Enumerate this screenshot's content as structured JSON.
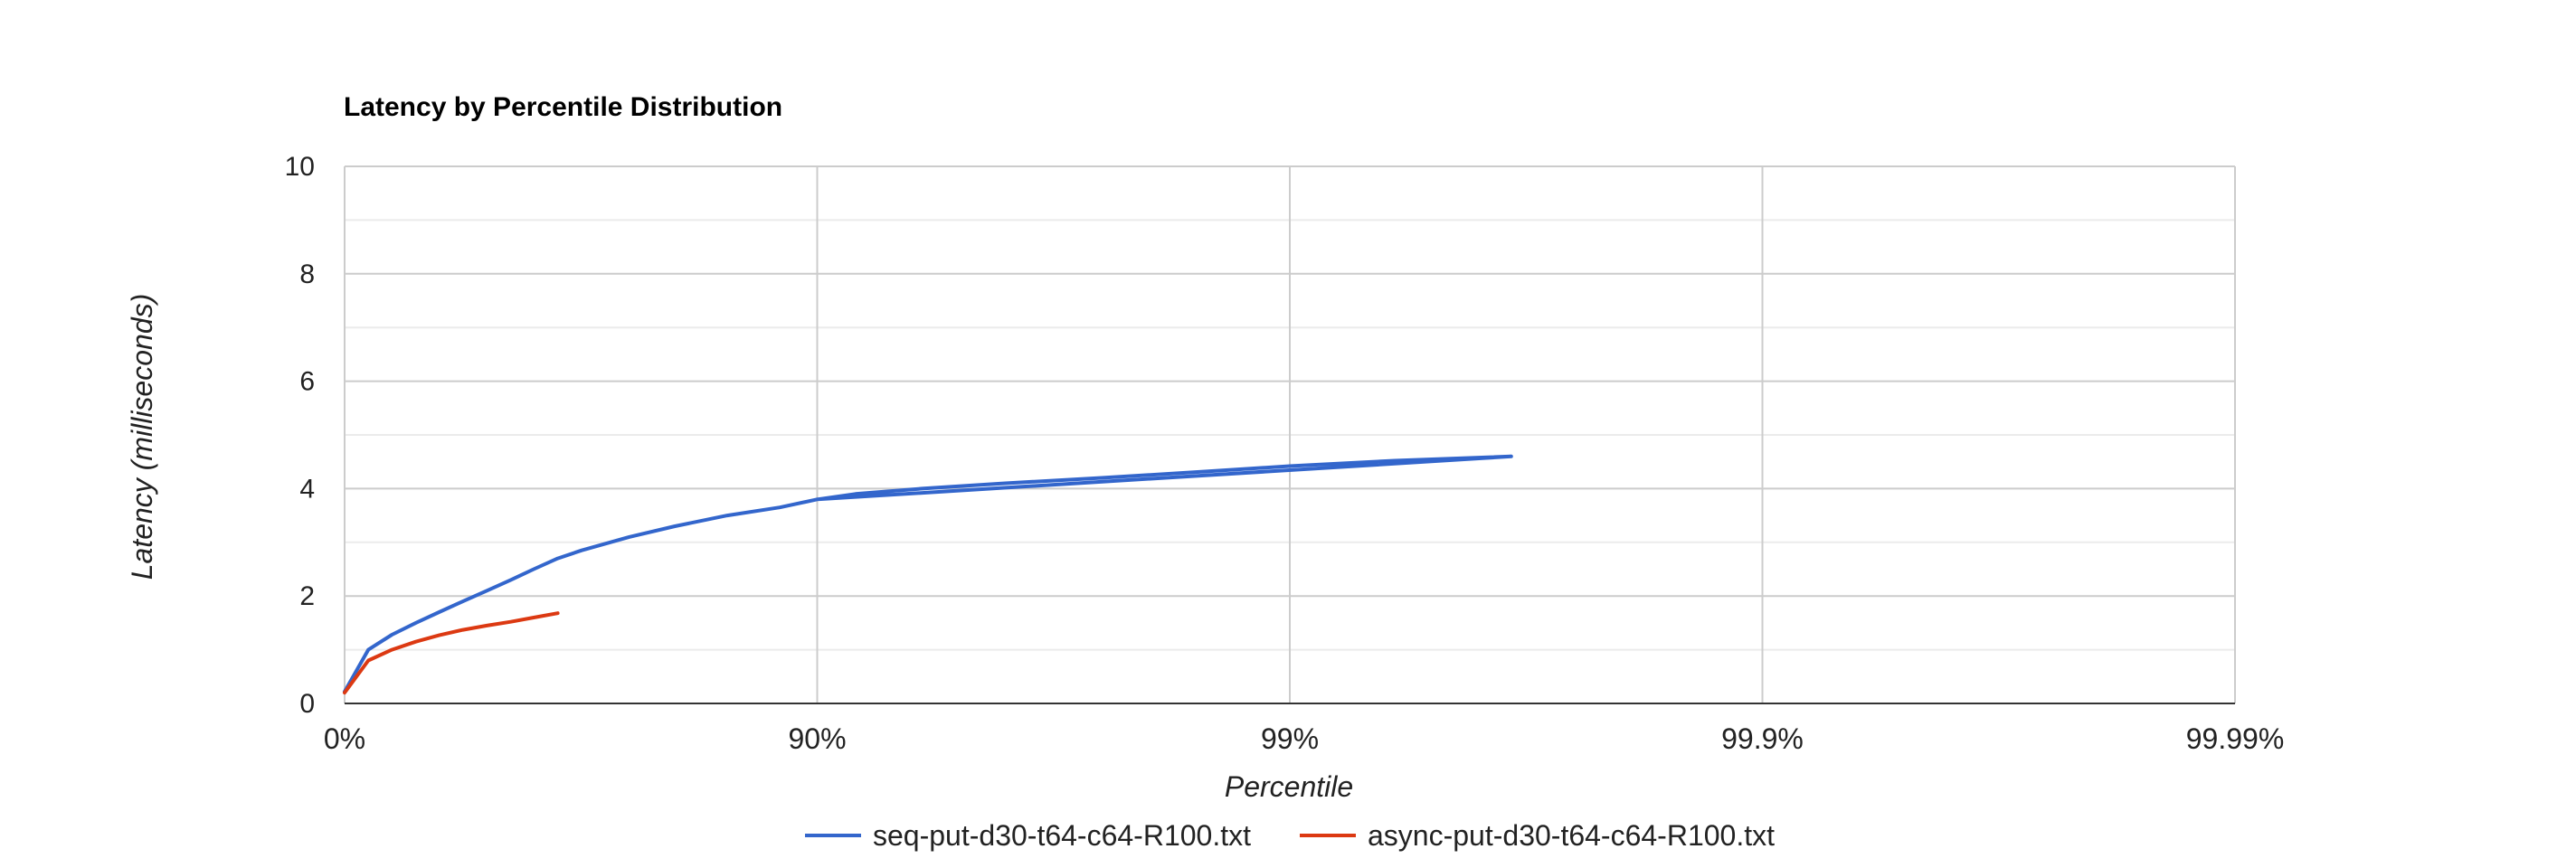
{
  "chart_data": {
    "type": "line",
    "title": "Latency by Percentile Distribution",
    "xlabel": "Percentile",
    "ylabel": "Latency (milliseconds)",
    "x_scale": "log(1/(1-p))",
    "xlim": [
      "0%",
      "99.99%"
    ],
    "ylim": [
      0,
      10
    ],
    "x_tick_labels": [
      "0%",
      "90%",
      "99%",
      "99.9%",
      "99.99%"
    ],
    "y_ticks": [
      0,
      2,
      4,
      6,
      8,
      10
    ],
    "grid": true,
    "legend_position": "bottom",
    "series": [
      {
        "name": "seq-put-d30-t64-c64-R100.txt",
        "color": "#3366cc",
        "points": [
          [
            0,
            0.22
          ],
          [
            0.109,
            1.0
          ],
          [
            0.206,
            1.28
          ],
          [
            0.293,
            1.5
          ],
          [
            0.369,
            1.7
          ],
          [
            0.438,
            1.9
          ],
          [
            0.5,
            2.1
          ],
          [
            0.555,
            2.3
          ],
          [
            0.602,
            2.5
          ],
          [
            0.646,
            2.7
          ],
          [
            0.685,
            2.85
          ],
          [
            0.75,
            3.1
          ],
          [
            0.8,
            3.3
          ],
          [
            0.845,
            3.5
          ],
          [
            0.88,
            3.65
          ],
          [
            0.9,
            3.8
          ],
          [
            0.917,
            3.9
          ],
          [
            0.94,
            4.0
          ],
          [
            0.96,
            4.1
          ],
          [
            0.975,
            4.2
          ],
          [
            0.985,
            4.32
          ],
          [
            0.99,
            4.42
          ],
          [
            0.994,
            4.52
          ],
          [
            0.9966,
            4.6
          ],
          [
            0.9,
            3.8
          ]
        ]
      },
      {
        "name": "async-put-d30-t64-c64-R100.txt",
        "color": "#dc3912",
        "points": [
          [
            0,
            0.2
          ],
          [
            0.109,
            0.8
          ],
          [
            0.206,
            1.0
          ],
          [
            0.293,
            1.15
          ],
          [
            0.369,
            1.27
          ],
          [
            0.438,
            1.37
          ],
          [
            0.5,
            1.45
          ],
          [
            0.555,
            1.52
          ],
          [
            0.602,
            1.6
          ],
          [
            0.646,
            1.68
          ]
        ]
      }
    ]
  }
}
